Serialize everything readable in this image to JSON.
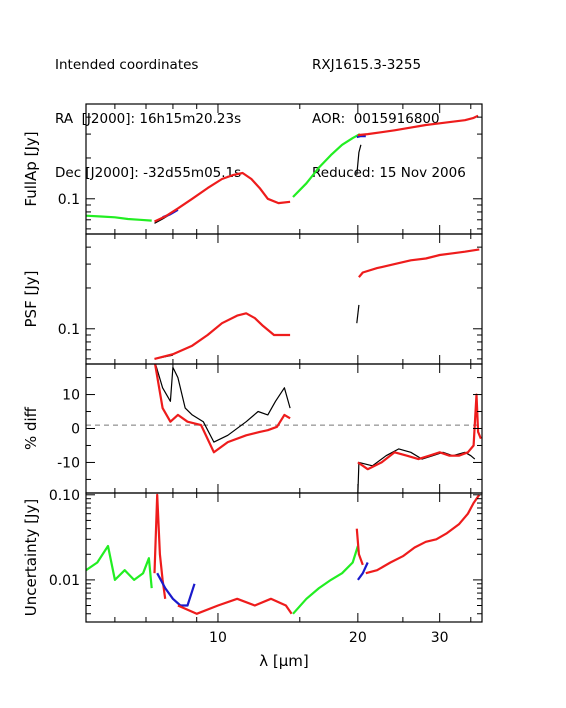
{
  "header": {
    "left": [
      "Intended coordinates",
      "RA  [J2000]: 16h15m20.23s",
      "Dec [J2000]: -32d55m05.1s"
    ],
    "right": [
      "RXJ1615.3-3255",
      "AOR:  0015916800",
      "Reduced: 15 Nov 2006"
    ]
  },
  "colors": {
    "green": "#22ee22",
    "blue": "#1a1acc",
    "red": "#ee1c1c",
    "black": "#000000",
    "dashed": "#777777"
  },
  "chart_data": [
    {
      "type": "line",
      "ylabel": "FullAp [Jy]",
      "yscale": "log",
      "ylim": [
        0.055,
        0.5
      ],
      "yticks": [
        {
          "value": 0.1,
          "label": "0.1"
        }
      ],
      "xlim": [
        5.2,
        37
      ],
      "series": [
        {
          "color": "green",
          "points": [
            [
              5.2,
              0.075
            ],
            [
              5.6,
              0.074
            ],
            [
              6.0,
              0.073
            ],
            [
              6.4,
              0.071
            ],
            [
              6.8,
              0.07
            ],
            [
              7.2,
              0.069
            ]
          ]
        },
        {
          "color": "black",
          "points": [
            [
              7.3,
              0.066
            ],
            [
              7.6,
              0.071
            ],
            [
              7.9,
              0.077
            ]
          ]
        },
        {
          "color": "blue",
          "points": [
            [
              7.6,
              0.073
            ],
            [
              7.9,
              0.077
            ],
            [
              8.2,
              0.083
            ]
          ]
        },
        {
          "color": "red",
          "points": [
            [
              7.3,
              0.068
            ],
            [
              7.7,
              0.074
            ],
            [
              8.2,
              0.085
            ],
            [
              8.8,
              0.1
            ],
            [
              9.5,
              0.12
            ],
            [
              10.2,
              0.14
            ],
            [
              10.8,
              0.15
            ],
            [
              11.3,
              0.155
            ],
            [
              11.8,
              0.14
            ],
            [
              12.3,
              0.12
            ],
            [
              12.8,
              0.1
            ],
            [
              13.5,
              0.093
            ],
            [
              14.3,
              0.095
            ]
          ]
        },
        {
          "color": "green",
          "points": [
            [
              14.5,
              0.103
            ],
            [
              15.5,
              0.13
            ],
            [
              16.5,
              0.17
            ],
            [
              17.5,
              0.21
            ],
            [
              18.5,
              0.25
            ],
            [
              19.5,
              0.28
            ],
            [
              20.2,
              0.3
            ]
          ]
        },
        {
          "color": "black",
          "points": [
            [
              19.9,
              0.15
            ],
            [
              20.1,
              0.22
            ],
            [
              20.3,
              0.25
            ]
          ]
        },
        {
          "color": "blue",
          "points": [
            [
              19.9,
              0.285
            ],
            [
              20.3,
              0.29
            ],
            [
              20.8,
              0.29
            ]
          ]
        },
        {
          "color": "red",
          "points": [
            [
              20.0,
              0.295
            ],
            [
              21.0,
              0.3
            ],
            [
              22.5,
              0.31
            ],
            [
              24.0,
              0.32
            ],
            [
              26.0,
              0.335
            ],
            [
              28.0,
              0.35
            ],
            [
              30.0,
              0.36
            ],
            [
              32.0,
              0.37
            ],
            [
              34.0,
              0.38
            ],
            [
              35.5,
              0.395
            ],
            [
              36.3,
              0.41
            ]
          ]
        }
      ]
    },
    {
      "type": "line",
      "ylabel": "PSF [Jy]",
      "yscale": "log",
      "ylim": [
        0.055,
        0.5
      ],
      "yticks": [
        {
          "value": 0.1,
          "label": "0.1"
        }
      ],
      "xlim": [
        5.2,
        37
      ],
      "series": [
        {
          "color": "black",
          "points": [
            [
              7.3,
              0.06
            ],
            [
              8.0,
              0.064
            ]
          ]
        },
        {
          "color": "red",
          "points": [
            [
              7.3,
              0.06
            ],
            [
              8.0,
              0.065
            ],
            [
              8.8,
              0.075
            ],
            [
              9.5,
              0.09
            ],
            [
              10.2,
              0.11
            ],
            [
              11.0,
              0.125
            ],
            [
              11.5,
              0.13
            ],
            [
              12.0,
              0.12
            ],
            [
              12.5,
              0.105
            ],
            [
              13.2,
              0.09
            ],
            [
              14.3,
              0.09
            ]
          ]
        },
        {
          "color": "black",
          "points": [
            [
              19.9,
              0.11
            ],
            [
              20.1,
              0.15
            ]
          ]
        },
        {
          "color": "red",
          "points": [
            [
              20.1,
              0.24
            ],
            [
              20.5,
              0.26
            ],
            [
              22.0,
              0.28
            ],
            [
              24.0,
              0.3
            ],
            [
              26.0,
              0.32
            ],
            [
              28.0,
              0.33
            ],
            [
              30.0,
              0.35
            ],
            [
              32.0,
              0.36
            ],
            [
              34.0,
              0.37
            ],
            [
              36.5,
              0.385
            ]
          ]
        }
      ]
    },
    {
      "type": "line",
      "ylabel": "% diff",
      "yscale": "linear",
      "ylim": [
        -19,
        19
      ],
      "yticks": [
        {
          "value": 10,
          "label": "10"
        },
        {
          "value": 0,
          "label": "0"
        },
        {
          "value": -10,
          "label": "-10"
        }
      ],
      "reference_line": 1,
      "xlim": [
        5.2,
        37
      ],
      "series": [
        {
          "color": "black",
          "points": [
            [
              7.3,
              20
            ],
            [
              7.6,
              12
            ],
            [
              7.9,
              8
            ],
            [
              8.0,
              18
            ],
            [
              8.2,
              15
            ],
            [
              8.5,
              6
            ],
            [
              8.8,
              4
            ],
            [
              9.3,
              2
            ],
            [
              9.8,
              -4
            ],
            [
              10.5,
              -2
            ],
            [
              11.5,
              2
            ],
            [
              12.2,
              5
            ],
            [
              12.8,
              4
            ],
            [
              13.3,
              8
            ],
            [
              13.9,
              12
            ],
            [
              14.3,
              6
            ]
          ]
        },
        {
          "color": "red",
          "points": [
            [
              7.3,
              20
            ],
            [
              7.6,
              6
            ],
            [
              7.9,
              2
            ],
            [
              8.2,
              4
            ],
            [
              8.6,
              2
            ],
            [
              9.2,
              1
            ],
            [
              9.8,
              -7
            ],
            [
              10.5,
              -4
            ],
            [
              11.5,
              -2
            ],
            [
              12.3,
              -1
            ],
            [
              12.8,
              -0.5
            ],
            [
              13.4,
              0.5
            ],
            [
              13.9,
              4
            ],
            [
              14.3,
              3
            ]
          ]
        },
        {
          "color": "black",
          "points": [
            [
              20.0,
              -19
            ],
            [
              20.1,
              -10
            ],
            [
              21.5,
              -11
            ],
            [
              23.0,
              -8
            ],
            [
              24.5,
              -6
            ],
            [
              26.0,
              -7
            ],
            [
              27.5,
              -9
            ],
            [
              29.0,
              -8
            ],
            [
              30.5,
              -7
            ],
            [
              32.0,
              -8
            ],
            [
              34.0,
              -7
            ],
            [
              35.0,
              -8
            ],
            [
              35.7,
              -9
            ]
          ]
        },
        {
          "color": "red",
          "points": [
            [
              20.0,
              -10
            ],
            [
              21.0,
              -12
            ],
            [
              22.5,
              -10
            ],
            [
              24.0,
              -7
            ],
            [
              25.5,
              -8
            ],
            [
              27.0,
              -9
            ],
            [
              28.5,
              -8
            ],
            [
              30.0,
              -7
            ],
            [
              31.5,
              -8
            ],
            [
              33.0,
              -8
            ],
            [
              34.5,
              -7
            ],
            [
              35.5,
              -5
            ],
            [
              36.0,
              10
            ],
            [
              36.3,
              -1
            ],
            [
              36.8,
              -3
            ]
          ]
        }
      ]
    },
    {
      "type": "line",
      "ylabel": "Uncertainty [Jy]",
      "xlabel": "λ [μm]",
      "yscale": "log",
      "ylim": [
        0.0032,
        0.105
      ],
      "yticks": [
        {
          "value": 0.1,
          "label": "0.10"
        },
        {
          "value": 0.01,
          "label": "0.01"
        }
      ],
      "xlim": [
        5.2,
        37
      ],
      "xticks": [
        {
          "value": 10,
          "label": "10"
        },
        {
          "value": 20,
          "label": "20"
        },
        {
          "value": 30,
          "label": "30"
        }
      ],
      "series": [
        {
          "color": "green",
          "points": [
            [
              5.2,
              0.013
            ],
            [
              5.5,
              0.016
            ],
            [
              5.8,
              0.025
            ],
            [
              6.0,
              0.01
            ],
            [
              6.3,
              0.013
            ],
            [
              6.6,
              0.01
            ],
            [
              6.9,
              0.012
            ],
            [
              7.1,
              0.018
            ],
            [
              7.2,
              0.008
            ]
          ]
        },
        {
          "color": "red",
          "points": [
            [
              7.3,
              0.012
            ],
            [
              7.4,
              0.1
            ],
            [
              7.5,
              0.02
            ],
            [
              7.6,
              0.01
            ],
            [
              7.7,
              0.006
            ]
          ]
        },
        {
          "color": "blue",
          "points": [
            [
              7.4,
              0.012
            ],
            [
              7.7,
              0.008
            ],
            [
              8.0,
              0.006
            ],
            [
              8.3,
              0.005
            ],
            [
              8.6,
              0.005
            ],
            [
              8.9,
              0.009
            ]
          ]
        },
        {
          "color": "red",
          "points": [
            [
              8.2,
              0.005
            ],
            [
              9.0,
              0.004
            ],
            [
              10.0,
              0.005
            ],
            [
              11.0,
              0.006
            ],
            [
              12.0,
              0.005
            ],
            [
              13.0,
              0.006
            ],
            [
              14.0,
              0.005
            ],
            [
              14.4,
              0.004
            ]
          ]
        },
        {
          "color": "green",
          "points": [
            [
              14.5,
              0.004
            ],
            [
              15.5,
              0.006
            ],
            [
              16.5,
              0.008
            ],
            [
              17.5,
              0.01
            ],
            [
              18.5,
              0.012
            ],
            [
              19.5,
              0.016
            ],
            [
              20.0,
              0.025
            ]
          ]
        },
        {
          "color": "red",
          "points": [
            [
              19.9,
              0.04
            ],
            [
              20.1,
              0.02
            ],
            [
              20.5,
              0.015
            ]
          ]
        },
        {
          "color": "blue",
          "points": [
            [
              20.0,
              0.01
            ],
            [
              20.5,
              0.012
            ],
            [
              21.0,
              0.016
            ]
          ]
        },
        {
          "color": "red",
          "points": [
            [
              20.8,
              0.012
            ],
            [
              22.0,
              0.013
            ],
            [
              23.5,
              0.016
            ],
            [
              25.0,
              0.019
            ],
            [
              26.5,
              0.024
            ],
            [
              28.0,
              0.028
            ],
            [
              29.5,
              0.03
            ],
            [
              31.0,
              0.035
            ],
            [
              33.0,
              0.045
            ],
            [
              34.5,
              0.06
            ],
            [
              35.5,
              0.08
            ],
            [
              36.5,
              0.1
            ]
          ]
        }
      ]
    }
  ]
}
